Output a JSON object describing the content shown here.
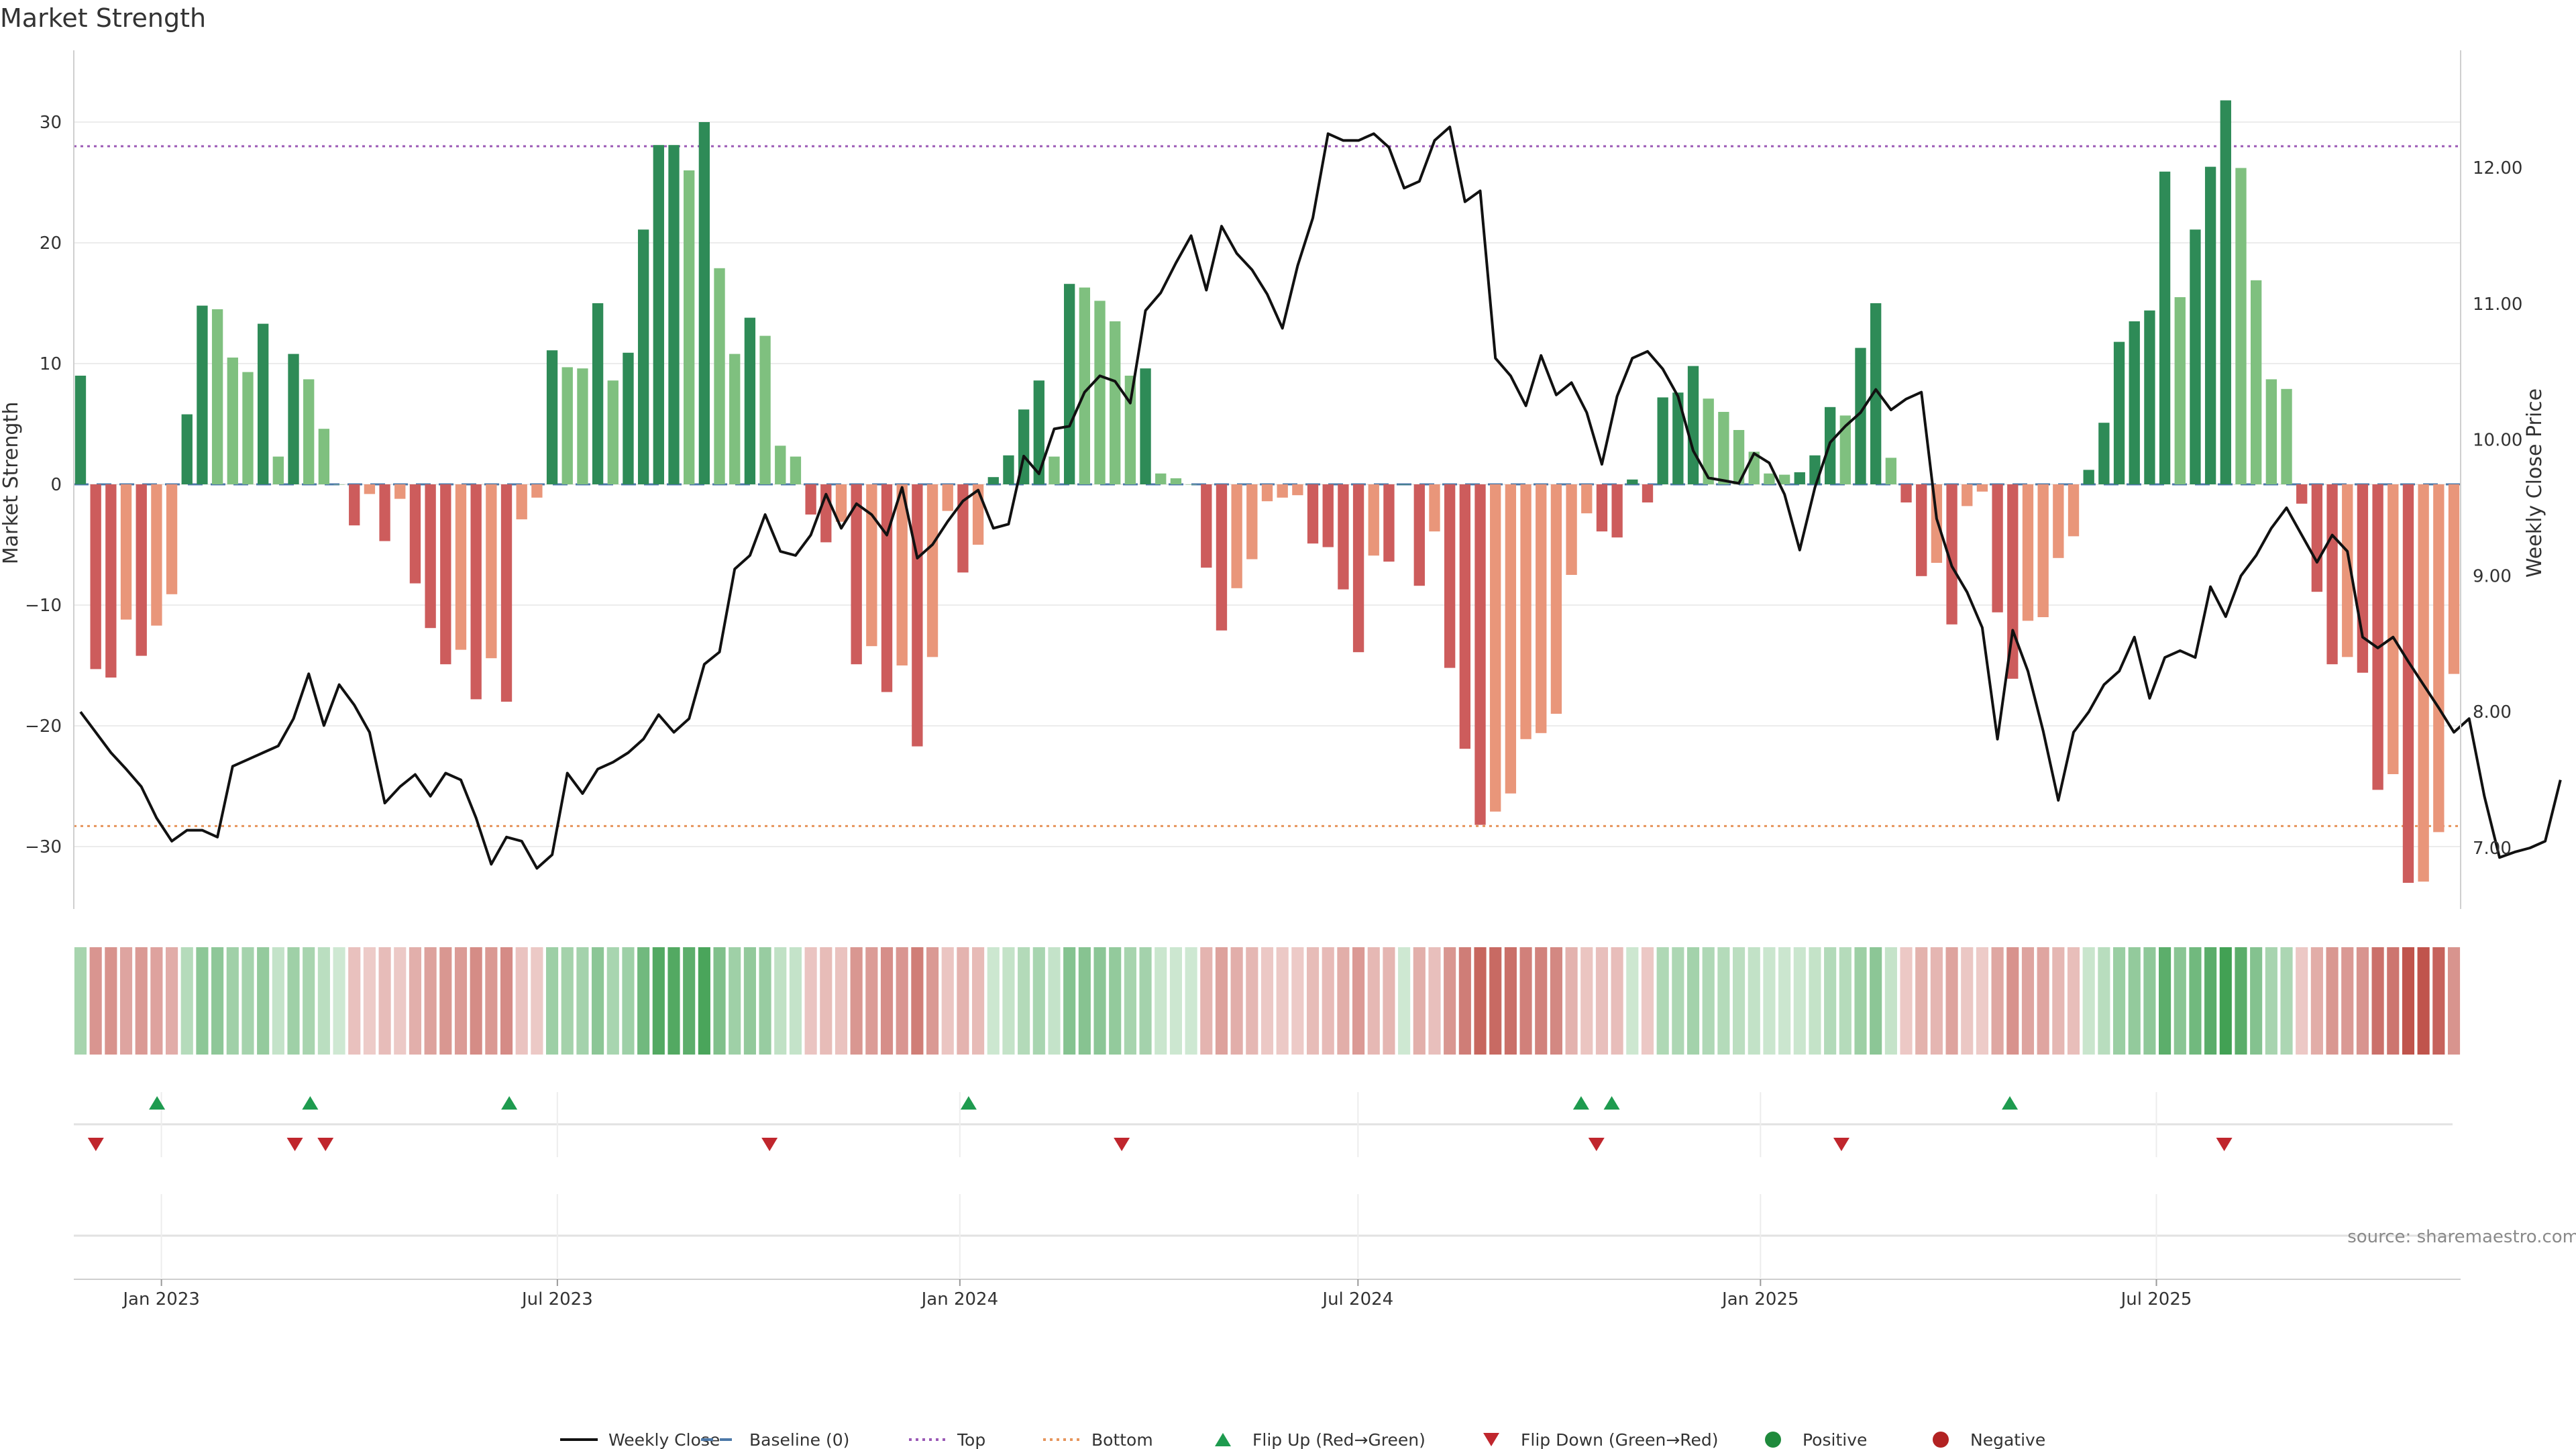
{
  "chart_data": {
    "type": "bar",
    "title": "Market Strength",
    "ylabel_left": "Market Strength",
    "ylabel_right": "Weekly Close Price",
    "source": "source: sharemaestro.com",
    "ylim_left": [
      -35,
      36
    ],
    "ylim_right": [
      6.6,
      12.8
    ],
    "left_ticks": [
      30,
      20,
      10,
      0,
      -10,
      -20,
      -30
    ],
    "left_tick_labels": [
      "30",
      "20",
      "10",
      "0",
      "−10",
      "−20",
      "−30"
    ],
    "right_ticks": [
      12,
      11,
      10,
      9,
      8,
      7
    ],
    "right_tick_labels": [
      "12.00",
      "11.00",
      "10.00",
      "9.00",
      "8.00",
      "7.00"
    ],
    "x_date_range": [
      "2022-11-25",
      "2025-11-14"
    ],
    "x_ticks": [
      {
        "date": "2023-01-01",
        "label": "Jan 2023"
      },
      {
        "date": "2023-07-01",
        "label": "Jul 2023"
      },
      {
        "date": "2024-01-01",
        "label": "Jan 2024"
      },
      {
        "date": "2024-07-01",
        "label": "Jul 2024"
      },
      {
        "date": "2025-01-01",
        "label": "Jan 2025"
      },
      {
        "date": "2025-07-01",
        "label": "Jul 2025"
      }
    ],
    "top_level": 28,
    "bottom_level": -28.3,
    "strength": [
      9,
      -15.3,
      -16,
      -11.2,
      -14.2,
      -11.7,
      -9.1,
      5.8,
      14.8,
      14.5,
      10.5,
      9.3,
      13.3,
      2.3,
      10.8,
      8.7,
      4.6,
      0,
      -3.4,
      -0.8,
      -4.7,
      -1.2,
      -8.2,
      -11.9,
      -14.9,
      -13.7,
      -17.8,
      -14.4,
      -18,
      -2.9,
      -1.1,
      11.1,
      9.7,
      9.6,
      15,
      8.6,
      10.9,
      21.1,
      28.1,
      28.1,
      26,
      30,
      17.9,
      10.8,
      13.8,
      12.3,
      3.2,
      2.3,
      -2.5,
      -4.8,
      -3.1,
      -14.9,
      -13.4,
      -17.2,
      -15,
      -21.7,
      -14.3,
      -2.2,
      -7.3,
      -5,
      0.6,
      2.4,
      6.2,
      8.6,
      2.3,
      16.6,
      16.3,
      15.2,
      13.5,
      9,
      9.6,
      0.9,
      0.5,
      0,
      -6.9,
      -12.1,
      -8.6,
      -6.2,
      -1.4,
      -1.1,
      -0.9,
      -4.9,
      -5.2,
      -8.7,
      -13.9,
      -5.9,
      -6.4,
      0,
      -8.4,
      -3.9,
      -15.2,
      -21.9,
      -28.2,
      -27.1,
      -25.6,
      -21.1,
      -20.6,
      -19,
      -7.5,
      -2.4,
      -3.9,
      -4.4,
      0.4,
      -1.5,
      7.2,
      7.6,
      9.8,
      7.1,
      6,
      4.5,
      2.7,
      0.9,
      0.8,
      1,
      2.4,
      6.4,
      5.7,
      11.3,
      15,
      2.2,
      -1.5,
      -7.6,
      -6.5,
      -11.6,
      -1.8,
      -0.6,
      -10.6,
      -16.1,
      -11.3,
      -11,
      -6.1,
      -4.3,
      1.2,
      5.1,
      11.8,
      13.5,
      14.4,
      25.9,
      15.5,
      21.1,
      26.3,
      31.8,
      26.2,
      16.9,
      8.7,
      7.9,
      -1.6,
      -8.9,
      -14.9,
      -14.3,
      -15.6,
      -25.3,
      -24,
      -33,
      -32.9,
      -28.8,
      -15.7
    ],
    "close": [
      8.0,
      7.85,
      7.7,
      7.58,
      7.45,
      7.22,
      7.05,
      7.13,
      7.13,
      7.08,
      7.6,
      7.65,
      7.7,
      7.75,
      7.95,
      8.28,
      7.9,
      8.2,
      8.05,
      7.85,
      7.33,
      7.45,
      7.54,
      7.38,
      7.55,
      7.5,
      7.22,
      6.88,
      7.08,
      7.05,
      6.85,
      6.95,
      7.55,
      7.4,
      7.58,
      7.63,
      7.7,
      7.8,
      7.98,
      7.85,
      7.95,
      8.35,
      8.44,
      9.05,
      9.15,
      9.45,
      9.18,
      9.15,
      9.3,
      9.6,
      9.35,
      9.53,
      9.45,
      9.3,
      9.65,
      9.13,
      9.23,
      9.4,
      9.55,
      9.63,
      9.35,
      9.38,
      9.88,
      9.75,
      10.08,
      10.1,
      10.35,
      10.47,
      10.43,
      10.27,
      10.95,
      11.08,
      11.3,
      11.5,
      11.1,
      11.57,
      11.37,
      11.25,
      11.07,
      10.82,
      11.28,
      11.63,
      12.25,
      12.2,
      12.2,
      12.25,
      12.15,
      11.85,
      11.9,
      12.2,
      12.3,
      11.75,
      11.83,
      10.6,
      10.47,
      10.25,
      10.62,
      10.33,
      10.42,
      10.2,
      9.82,
      10.32,
      10.6,
      10.65,
      10.52,
      10.32,
      9.92,
      9.72,
      9.7,
      9.68,
      9.9,
      9.83,
      9.6,
      9.19,
      9.65,
      9.98,
      10.1,
      10.2,
      10.37,
      10.22,
      10.3,
      10.35,
      9.42,
      9.07,
      8.88,
      8.62,
      7.8,
      8.6,
      8.3,
      7.86,
      7.35,
      7.85,
      8.0,
      8.2,
      8.3,
      8.55,
      8.1,
      8.4,
      8.45,
      8.4,
      8.92,
      8.7,
      9.0,
      9.15,
      9.35,
      9.5,
      9.3,
      9.1,
      9.3,
      9.18,
      8.55,
      8.47,
      8.55,
      8.37,
      8.2,
      8.03,
      7.85,
      7.95,
      7.38,
      6.93,
      6.97,
      7.0,
      7.05,
      7.5
    ],
    "flip_up": [
      "2022-12-30",
      "2023-03-10",
      "2023-06-09",
      "2024-01-05",
      "2024-10-11",
      "2024-10-25",
      "2025-04-25"
    ],
    "flip_down": [
      "2022-12-02",
      "2023-03-03",
      "2023-03-17",
      "2023-10-06",
      "2024-03-15",
      "2024-10-18",
      "2025-02-07",
      "2025-08-01"
    ],
    "legend": [
      {
        "label": "Weekly Close",
        "kind": "line",
        "color": "#111111"
      },
      {
        "label": "Baseline (0)",
        "kind": "dashed",
        "color": "#4c78a8"
      },
      {
        "label": "Top",
        "kind": "dotted",
        "color": "#9b59b6"
      },
      {
        "label": "Bottom",
        "kind": "dotted",
        "color": "#e6955c"
      },
      {
        "label": "Flip Up (Red→Green)",
        "kind": "tri-up",
        "color": "#1e9b4f"
      },
      {
        "label": "Flip Down (Green→Red)",
        "kind": "tri-down",
        "color": "#c0262d"
      },
      {
        "label": "Positive",
        "kind": "dot",
        "color": "#1f8a3c"
      },
      {
        "label": "Negative",
        "kind": "dot",
        "color": "#b22222"
      }
    ],
    "colors": {
      "pos_dark": "#2e8b57",
      "pos_light": "#7fc07f",
      "neg_dark": "#cd5c5c",
      "neg_light": "#e9967a",
      "baseline": "#4c78a8",
      "top": "#9b59b6",
      "bottom": "#e6955c",
      "flip_up": "#1e9b4f",
      "flip_down": "#c0262d"
    }
  }
}
